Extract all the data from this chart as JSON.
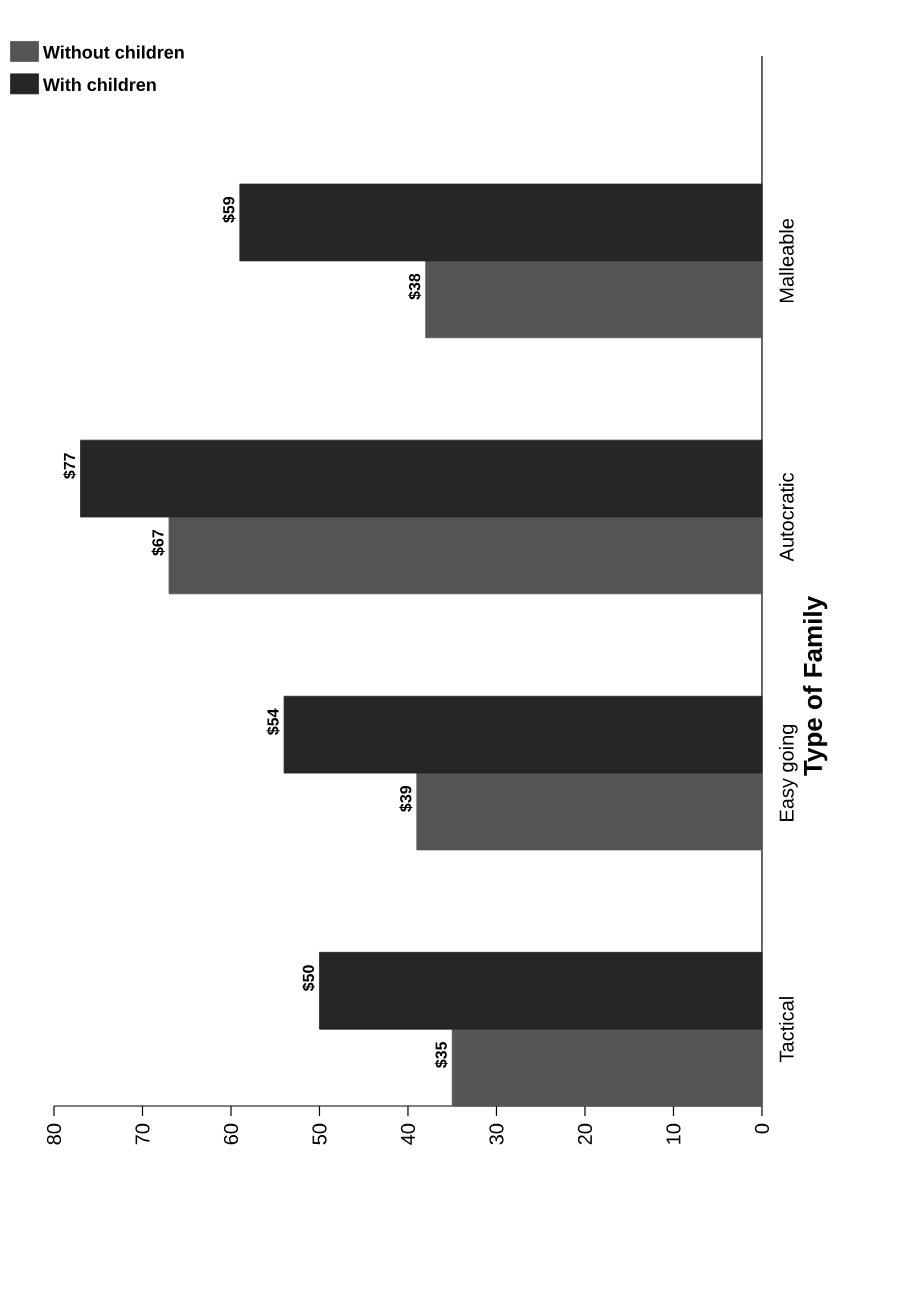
{
  "chart_data": {
    "type": "bar",
    "orientation": "horizontal",
    "ylabel": "Type of Family",
    "categories": [
      "Malleable",
      "Autocratic",
      "Easy going",
      "Tactical"
    ],
    "series": [
      {
        "name": "Without children",
        "color": "#555555",
        "values": [
          38,
          67,
          39,
          35
        ],
        "value_labels": [
          "$38",
          "$67",
          "$39",
          "$35"
        ]
      },
      {
        "name": "With children",
        "color": "#262626",
        "values": [
          59,
          77,
          54,
          50
        ],
        "value_labels": [
          "$59",
          "$77",
          "$54",
          "$50"
        ]
      }
    ],
    "xlim": [
      80,
      0
    ],
    "xticks": [
      80,
      70,
      60,
      50,
      40,
      30,
      20,
      10,
      0
    ],
    "legend": "top left"
  }
}
